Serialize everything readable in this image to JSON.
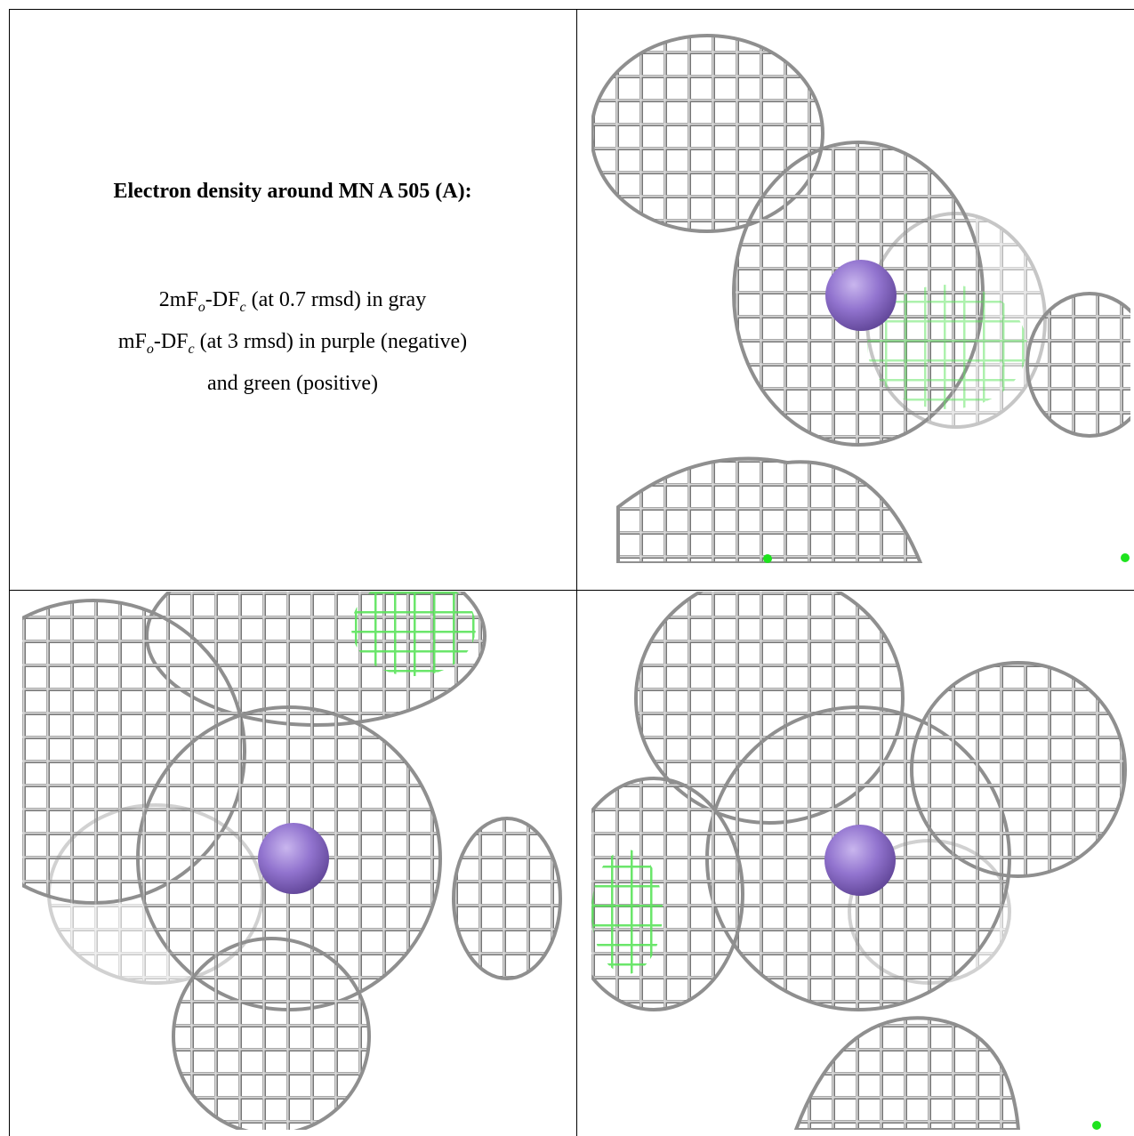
{
  "title": "Electron density around MN A 505 (A):",
  "legend": [
    [
      "2mF",
      "o",
      "-DF",
      "c",
      " (at 0.7 rmsd) in gray"
    ],
    [
      "mF",
      "o",
      "-DF",
      "c",
      " (at 3 rmsd) in purple (negative)"
    ],
    [
      "and green (positive)"
    ]
  ]
}
